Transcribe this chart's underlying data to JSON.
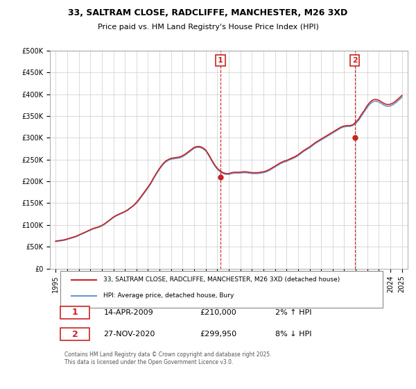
{
  "title": "33, SALTRAM CLOSE, RADCLIFFE, MANCHESTER, M26 3XD",
  "subtitle": "Price paid vs. HM Land Registry's House Price Index (HPI)",
  "hpi_color": "#6699cc",
  "price_color": "#cc2222",
  "vline_color": "#cc2222",
  "annotation_box_color": "#cc2222",
  "background_color": "#ffffff",
  "grid_color": "#cccccc",
  "ylim": [
    0,
    500000
  ],
  "yticks": [
    0,
    50000,
    100000,
    150000,
    200000,
    250000,
    300000,
    350000,
    400000,
    450000,
    500000
  ],
  "ytick_labels": [
    "£0",
    "£50K",
    "£100K",
    "£150K",
    "£200K",
    "£250K",
    "£300K",
    "£350K",
    "£400K",
    "£450K",
    "£500K"
  ],
  "xlim_start": 1994.5,
  "xlim_end": 2025.5,
  "xticks": [
    1995,
    1996,
    1997,
    1998,
    1999,
    2000,
    2001,
    2002,
    2003,
    2004,
    2005,
    2006,
    2007,
    2008,
    2009,
    2010,
    2011,
    2012,
    2013,
    2014,
    2015,
    2016,
    2017,
    2018,
    2019,
    2020,
    2021,
    2022,
    2023,
    2024,
    2025
  ],
  "purchase1_x": 2009.28,
  "purchase1_y": 210000,
  "purchase1_label": "1",
  "purchase1_date": "14-APR-2009",
  "purchase1_price": "£210,000",
  "purchase1_hpi": "2% ↑ HPI",
  "purchase2_x": 2020.91,
  "purchase2_y": 299950,
  "purchase2_label": "2",
  "purchase2_date": "27-NOV-2020",
  "purchase2_price": "£299,950",
  "purchase2_hpi": "8% ↓ HPI",
  "legend_line1": "33, SALTRAM CLOSE, RADCLIFFE, MANCHESTER, M26 3XD (detached house)",
  "legend_line2": "HPI: Average price, detached house, Bury",
  "footer": "Contains HM Land Registry data © Crown copyright and database right 2025.\nThis data is licensed under the Open Government Licence v3.0.",
  "hpi_data_x": [
    1995.0,
    1995.25,
    1995.5,
    1995.75,
    1996.0,
    1996.25,
    1996.5,
    1996.75,
    1997.0,
    1997.25,
    1997.5,
    1997.75,
    1998.0,
    1998.25,
    1998.5,
    1998.75,
    1999.0,
    1999.25,
    1999.5,
    1999.75,
    2000.0,
    2000.25,
    2000.5,
    2000.75,
    2001.0,
    2001.25,
    2001.5,
    2001.75,
    2002.0,
    2002.25,
    2002.5,
    2002.75,
    2003.0,
    2003.25,
    2003.5,
    2003.75,
    2004.0,
    2004.25,
    2004.5,
    2004.75,
    2005.0,
    2005.25,
    2005.5,
    2005.75,
    2006.0,
    2006.25,
    2006.5,
    2006.75,
    2007.0,
    2007.25,
    2007.5,
    2007.75,
    2008.0,
    2008.25,
    2008.5,
    2008.75,
    2009.0,
    2009.25,
    2009.5,
    2009.75,
    2010.0,
    2010.25,
    2010.5,
    2010.75,
    2011.0,
    2011.25,
    2011.5,
    2011.75,
    2012.0,
    2012.25,
    2012.5,
    2012.75,
    2013.0,
    2013.25,
    2013.5,
    2013.75,
    2014.0,
    2014.25,
    2014.5,
    2014.75,
    2015.0,
    2015.25,
    2015.5,
    2015.75,
    2016.0,
    2016.25,
    2016.5,
    2016.75,
    2017.0,
    2017.25,
    2017.5,
    2017.75,
    2018.0,
    2018.25,
    2018.5,
    2018.75,
    2019.0,
    2019.25,
    2019.5,
    2019.75,
    2020.0,
    2020.25,
    2020.5,
    2020.75,
    2021.0,
    2021.25,
    2021.5,
    2021.75,
    2022.0,
    2022.25,
    2022.5,
    2022.75,
    2023.0,
    2023.25,
    2023.5,
    2023.75,
    2024.0,
    2024.25,
    2024.5,
    2024.75,
    2025.0
  ],
  "hpi_data_y": [
    62000,
    63000,
    64000,
    65000,
    67000,
    69000,
    71000,
    73000,
    76000,
    79000,
    82000,
    85000,
    88000,
    91000,
    93000,
    95000,
    98000,
    102000,
    107000,
    112000,
    117000,
    121000,
    124000,
    127000,
    130000,
    134000,
    139000,
    144000,
    150000,
    158000,
    167000,
    176000,
    185000,
    195000,
    207000,
    218000,
    228000,
    237000,
    244000,
    248000,
    251000,
    252000,
    253000,
    254000,
    257000,
    261000,
    266000,
    271000,
    276000,
    278000,
    278000,
    275000,
    270000,
    260000,
    248000,
    237000,
    228000,
    222000,
    218000,
    216000,
    216000,
    218000,
    219000,
    219000,
    219000,
    220000,
    220000,
    219000,
    218000,
    218000,
    218000,
    219000,
    220000,
    222000,
    225000,
    229000,
    233000,
    237000,
    241000,
    244000,
    246000,
    249000,
    252000,
    255000,
    259000,
    264000,
    269000,
    273000,
    277000,
    282000,
    287000,
    291000,
    295000,
    299000,
    303000,
    307000,
    311000,
    315000,
    319000,
    323000,
    325000,
    326000,
    326000,
    328000,
    333000,
    340000,
    350000,
    360000,
    370000,
    378000,
    383000,
    384000,
    382000,
    378000,
    374000,
    372000,
    373000,
    376000,
    381000,
    387000,
    393000
  ],
  "price_data_x": [
    1995.0,
    1995.25,
    1995.5,
    1995.75,
    1996.0,
    1996.25,
    1996.5,
    1996.75,
    1997.0,
    1997.25,
    1997.5,
    1997.75,
    1998.0,
    1998.25,
    1998.5,
    1998.75,
    1999.0,
    1999.25,
    1999.5,
    1999.75,
    2000.0,
    2000.25,
    2000.5,
    2000.75,
    2001.0,
    2001.25,
    2001.5,
    2001.75,
    2002.0,
    2002.25,
    2002.5,
    2002.75,
    2003.0,
    2003.25,
    2003.5,
    2003.75,
    2004.0,
    2004.25,
    2004.5,
    2004.75,
    2005.0,
    2005.25,
    2005.5,
    2005.75,
    2006.0,
    2006.25,
    2006.5,
    2006.75,
    2007.0,
    2007.25,
    2007.5,
    2007.75,
    2008.0,
    2008.25,
    2008.5,
    2008.75,
    2009.0,
    2009.25,
    2009.5,
    2009.75,
    2010.0,
    2010.25,
    2010.5,
    2010.75,
    2011.0,
    2011.25,
    2011.5,
    2011.75,
    2012.0,
    2012.25,
    2012.5,
    2012.75,
    2013.0,
    2013.25,
    2013.5,
    2013.75,
    2014.0,
    2014.25,
    2014.5,
    2014.75,
    2015.0,
    2015.25,
    2015.5,
    2015.75,
    2016.0,
    2016.25,
    2016.5,
    2016.75,
    2017.0,
    2017.25,
    2017.5,
    2017.75,
    2018.0,
    2018.25,
    2018.5,
    2018.75,
    2019.0,
    2019.25,
    2019.5,
    2019.75,
    2020.0,
    2020.25,
    2020.5,
    2020.75,
    2021.0,
    2021.25,
    2021.5,
    2021.75,
    2022.0,
    2022.25,
    2022.5,
    2022.75,
    2023.0,
    2023.25,
    2023.5,
    2023.75,
    2024.0,
    2024.25,
    2024.5,
    2024.75,
    2025.0
  ],
  "price_data_y": [
    63000,
    64000,
    65000,
    66000,
    68000,
    70000,
    72000,
    74000,
    77000,
    80000,
    83000,
    86000,
    89000,
    92000,
    94000,
    96000,
    99000,
    103000,
    108000,
    113000,
    118000,
    122000,
    125000,
    128000,
    131000,
    135000,
    140000,
    145000,
    152000,
    160000,
    169000,
    178000,
    187000,
    197000,
    209000,
    220000,
    230000,
    239000,
    246000,
    250000,
    253000,
    254000,
    255000,
    256000,
    259000,
    263000,
    268000,
    273000,
    278000,
    280000,
    280000,
    277000,
    272000,
    262000,
    250000,
    239000,
    230000,
    224000,
    220000,
    218000,
    218000,
    220000,
    221000,
    221000,
    221000,
    222000,
    222000,
    221000,
    220000,
    220000,
    220000,
    221000,
    222000,
    224000,
    227000,
    231000,
    235000,
    239000,
    243000,
    246000,
    248000,
    251000,
    254000,
    257000,
    261000,
    266000,
    271000,
    275000,
    279000,
    284000,
    289000,
    293000,
    297000,
    301000,
    305000,
    309000,
    313000,
    317000,
    321000,
    325000,
    327000,
    328000,
    328000,
    330000,
    336000,
    343000,
    354000,
    363000,
    374000,
    382000,
    387000,
    388000,
    386000,
    382000,
    378000,
    376000,
    377000,
    380000,
    385000,
    391000,
    397000
  ]
}
